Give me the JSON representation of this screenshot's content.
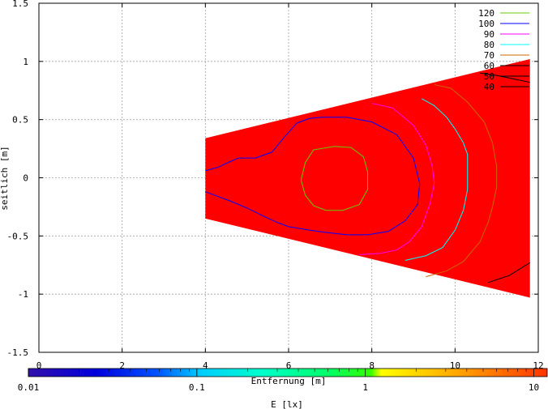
{
  "chart_data": {
    "type": "contour",
    "xlabel": "Entfernung [m]",
    "ylabel": "seitlich [m]",
    "xlim": [
      0,
      12
    ],
    "ylim": [
      -1.5,
      1.5
    ],
    "x_ticks": [
      "0",
      "2",
      "4",
      "6",
      "8",
      "10",
      "12"
    ],
    "x_tick_values": [
      0,
      2,
      4,
      6,
      8,
      10,
      12
    ],
    "y_ticks": [
      "1.5",
      "1",
      "0.5",
      "0",
      "-0.5",
      "-1",
      "-1.5"
    ],
    "y_tick_values": [
      1.5,
      1,
      0.5,
      0,
      -0.5,
      -1,
      -1.5
    ],
    "grid": true,
    "fill_color": "#ff0000",
    "region": [
      [
        4,
        0.34
      ],
      [
        11.8,
        1.02
      ],
      [
        11.8,
        -1.03
      ],
      [
        4,
        -0.35
      ]
    ],
    "contour_levels": [
      {
        "name": "120",
        "color": "#66cc00",
        "x": [
          7.1,
          7.5,
          7.8,
          7.9,
          7.9,
          7.7,
          7.3,
          6.9,
          6.6,
          6.4,
          6.3,
          6.4,
          6.6,
          7.1
        ],
        "y": [
          0.27,
          0.26,
          0.18,
          0.05,
          -0.1,
          -0.23,
          -0.28,
          -0.28,
          -0.24,
          -0.15,
          -0.02,
          0.13,
          0.24,
          0.27
        ]
      },
      {
        "name": "100",
        "color": "#0000ff",
        "x": [
          4,
          4.3,
          4.6,
          4.8,
          5.2,
          5.6,
          5.9,
          6.2,
          6.5,
          6.8,
          7.4,
          8,
          8.6,
          9,
          9.15,
          9.1,
          8.8,
          8.4,
          7.9,
          7.4,
          6.9,
          6.5,
          6,
          5.7,
          5.4,
          5,
          4.6,
          4
        ],
        "y": [
          0.06,
          0.09,
          0.14,
          0.17,
          0.17,
          0.22,
          0.35,
          0.47,
          0.51,
          0.52,
          0.52,
          0.48,
          0.37,
          0.17,
          -0.05,
          -0.23,
          -0.37,
          -0.46,
          -0.49,
          -0.49,
          -0.47,
          -0.45,
          -0.42,
          -0.38,
          -0.33,
          -0.26,
          -0.2,
          -0.12
        ]
      },
      {
        "name": "90",
        "color": "#ff00ff",
        "x": [
          8,
          8.5,
          9,
          9.3,
          9.45,
          9.5,
          9.4,
          9.2,
          8.9,
          8.6,
          8.2,
          7.7
        ],
        "y": [
          0.64,
          0.6,
          0.45,
          0.28,
          0.1,
          -0.05,
          -0.22,
          -0.42,
          -0.55,
          -0.62,
          -0.65,
          -0.66
        ]
      },
      {
        "name": "80",
        "color": "#00ffff",
        "x": [
          9.2,
          9.5,
          9.8,
          10.0,
          10.2,
          10.3,
          10.3,
          10.3,
          10.2,
          10.0,
          9.7,
          9.3,
          8.8
        ],
        "y": [
          0.68,
          0.62,
          0.52,
          0.42,
          0.3,
          0.2,
          0.05,
          -0.1,
          -0.28,
          -0.45,
          -0.6,
          -0.67,
          -0.71
        ]
      },
      {
        "name": "70",
        "color": "#cc6600",
        "x": [
          9.5,
          9.9,
          10.3,
          10.7,
          10.9,
          11.0,
          11.0,
          10.9,
          10.8,
          10.6,
          10.2,
          9.8,
          9.3
        ],
        "y": [
          0.8,
          0.77,
          0.65,
          0.48,
          0.3,
          0.1,
          -0.08,
          -0.25,
          -0.38,
          -0.55,
          -0.72,
          -0.8,
          -0.85
        ]
      },
      {
        "name": "60",
        "color": "#000000",
        "x": [
          10.6,
          11.0,
          11.4,
          11.8
        ],
        "y": [
          0.9,
          0.88,
          0.85,
          0.82
        ]
      },
      {
        "name": "50",
        "color": "#000000",
        "x": [
          10.8,
          11.3,
          11.8
        ],
        "y": [
          -0.9,
          -0.84,
          -0.73
        ]
      },
      {
        "name": "40",
        "color": "#000000",
        "x": [],
        "y": []
      }
    ],
    "colorbar": {
      "label": "E [lx]",
      "scale": "log",
      "range": [
        0.01,
        12
      ],
      "tick_labels": [
        "0.01",
        "0.1",
        "1",
        "10"
      ],
      "tick_values": [
        0.01,
        0.1,
        1,
        10
      ]
    }
  }
}
